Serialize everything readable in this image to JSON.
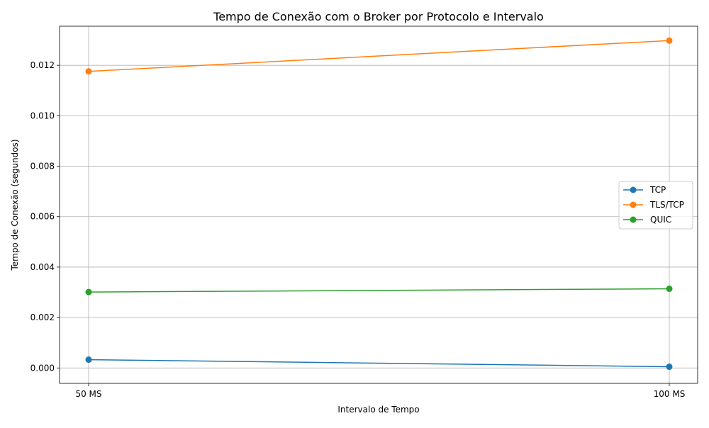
{
  "chart_data": {
    "type": "line",
    "title": "Tempo de Conexão com o Broker por Protocolo e Intervalo",
    "xlabel": "Intervalo de Tempo",
    "ylabel": "Tempo de Conexão (segundos)",
    "categories": [
      "50 MS",
      "100 MS"
    ],
    "ylim": [
      -0.00061,
      0.01355
    ],
    "yticks": [
      0.0,
      0.002,
      0.004,
      0.006,
      0.008,
      0.01,
      0.012
    ],
    "ytick_labels": [
      "0.000",
      "0.002",
      "0.004",
      "0.006",
      "0.008",
      "0.010",
      "0.012"
    ],
    "grid": true,
    "legend_position": "center-right",
    "series": [
      {
        "name": "TCP",
        "color": "#1f77b4",
        "values": [
          0.00033,
          5e-05
        ]
      },
      {
        "name": "TLS/TCP",
        "color": "#ff7f0e",
        "values": [
          0.01176,
          0.01298
        ]
      },
      {
        "name": "QUIC",
        "color": "#2ca02c",
        "values": [
          0.00301,
          0.00314
        ]
      }
    ]
  }
}
